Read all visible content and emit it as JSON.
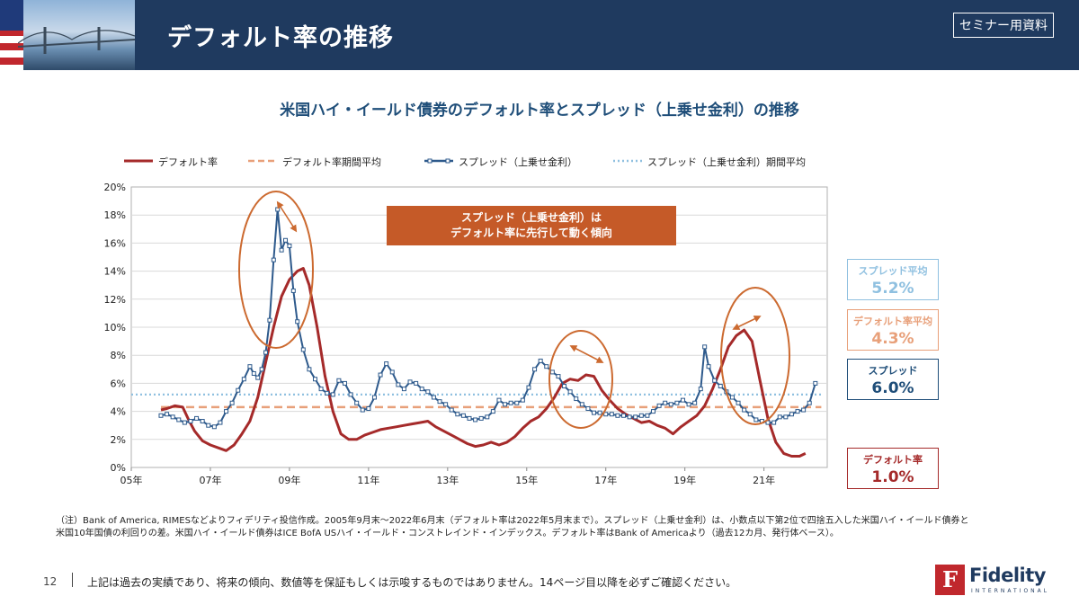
{
  "header": {
    "title": "デフォルト率の推移",
    "badge": "セミナー用資料"
  },
  "legend": {
    "default_rate": "デフォルト率",
    "default_avg": "デフォルト率期間平均",
    "spread": "スプレッド（上乗せ金利）",
    "spread_avg": "スプレッド（上乗せ金利）期間平均"
  },
  "callout": {
    "line1": "スプレッド（上乗せ金利）は",
    "line2": "デフォルト率に先行して動く傾向"
  },
  "kpis": {
    "spread_avg_label": "スプレッド平均",
    "spread_avg_value": "5.2%",
    "default_avg_label": "デフォルト率平均",
    "default_avg_value": "4.3%",
    "spread_label": "スプレッド",
    "spread_value": "6.0%",
    "default_label": "デフォルト率",
    "default_value": "1.0%"
  },
  "notes": {
    "line1": "（注）Bank of America, RIMESなどよりフィデリティ投信作成。2005年9月末～2022年6月末（デフォルト率は2022年5月末まで）。スプレッド（上乗せ金利）は、小数点以下第2位で四捨五入した米国ハイ・イールド債券と",
    "line2": "米国10年国債の利回りの差。米国ハイ・イールド債券はICE BofA USハイ・イールド・コンストレインド・インデックス。デフォルト率はBank of Americaより（過去12カ月、発行体ベース）。"
  },
  "footer": {
    "page": "12",
    "disclaimer": "上記は過去の実績であり、将来の傾向、数値等を保証もしくは示唆するものではありません。14ページ目以降を必ずご確認ください。",
    "logo_name": "Fidelity",
    "logo_sub": "INTERNATIONAL",
    "logo_mark": "F"
  },
  "colors": {
    "header_bg": "#1f3a5f",
    "default_rate": "#a52a2a",
    "default_avg": "#e8a07a",
    "spread": "#2e5a8c",
    "spread_avg": "#8fc0e0",
    "callout_bg": "#c55a28",
    "ellipse": "#cc6a30"
  },
  "chart_data": {
    "type": "line",
    "title": "米国ハイ・イールド債券のデフォルト率とスプレッド（上乗せ金利）の推移",
    "xlabel": "",
    "ylabel": "",
    "xlim": [
      2005.0,
      2022.6
    ],
    "ylim": [
      0,
      20
    ],
    "x_ticks": [
      {
        "x": 2005,
        "label": "05年"
      },
      {
        "x": 2007,
        "label": "07年"
      },
      {
        "x": 2009,
        "label": "09年"
      },
      {
        "x": 2011,
        "label": "11年"
      },
      {
        "x": 2013,
        "label": "13年"
      },
      {
        "x": 2015,
        "label": "15年"
      },
      {
        "x": 2017,
        "label": "17年"
      },
      {
        "x": 2019,
        "label": "19年"
      },
      {
        "x": 2021,
        "label": "21年"
      }
    ],
    "y_ticks": [
      "0%",
      "2%",
      "4%",
      "6%",
      "8%",
      "10%",
      "12%",
      "14%",
      "16%",
      "18%",
      "20%"
    ],
    "grid": true,
    "legend_position": "top",
    "series": [
      {
        "name": "デフォルト率",
        "style": "solid",
        "points": [
          [
            2005.75,
            4.1
          ],
          [
            2005.9,
            4.2
          ],
          [
            2006.1,
            4.4
          ],
          [
            2006.3,
            4.3
          ],
          [
            2006.45,
            3.4
          ],
          [
            2006.6,
            2.6
          ],
          [
            2006.8,
            1.9
          ],
          [
            2007.0,
            1.6
          ],
          [
            2007.2,
            1.4
          ],
          [
            2007.4,
            1.2
          ],
          [
            2007.6,
            1.6
          ],
          [
            2007.8,
            2.4
          ],
          [
            2008.0,
            3.3
          ],
          [
            2008.2,
            5.0
          ],
          [
            2008.4,
            7.5
          ],
          [
            2008.6,
            10.0
          ],
          [
            2008.8,
            12.2
          ],
          [
            2009.0,
            13.4
          ],
          [
            2009.2,
            14.0
          ],
          [
            2009.35,
            14.2
          ],
          [
            2009.5,
            13.0
          ],
          [
            2009.7,
            10.0
          ],
          [
            2009.9,
            6.5
          ],
          [
            2010.1,
            4.0
          ],
          [
            2010.3,
            2.4
          ],
          [
            2010.5,
            2.0
          ],
          [
            2010.7,
            2.0
          ],
          [
            2010.9,
            2.3
          ],
          [
            2011.1,
            2.5
          ],
          [
            2011.3,
            2.7
          ],
          [
            2011.5,
            2.8
          ],
          [
            2011.7,
            2.9
          ],
          [
            2011.9,
            3.0
          ],
          [
            2012.1,
            3.1
          ],
          [
            2012.3,
            3.2
          ],
          [
            2012.5,
            3.3
          ],
          [
            2012.7,
            2.9
          ],
          [
            2012.9,
            2.6
          ],
          [
            2013.1,
            2.3
          ],
          [
            2013.3,
            2.0
          ],
          [
            2013.5,
            1.7
          ],
          [
            2013.7,
            1.5
          ],
          [
            2013.9,
            1.6
          ],
          [
            2014.1,
            1.8
          ],
          [
            2014.3,
            1.6
          ],
          [
            2014.5,
            1.8
          ],
          [
            2014.7,
            2.2
          ],
          [
            2014.9,
            2.8
          ],
          [
            2015.1,
            3.3
          ],
          [
            2015.3,
            3.6
          ],
          [
            2015.5,
            4.2
          ],
          [
            2015.7,
            5.0
          ],
          [
            2015.9,
            6.0
          ],
          [
            2016.1,
            6.3
          ],
          [
            2016.3,
            6.2
          ],
          [
            2016.5,
            6.6
          ],
          [
            2016.7,
            6.5
          ],
          [
            2016.9,
            5.5
          ],
          [
            2017.1,
            4.8
          ],
          [
            2017.3,
            4.2
          ],
          [
            2017.5,
            3.8
          ],
          [
            2017.7,
            3.5
          ],
          [
            2017.9,
            3.2
          ],
          [
            2018.1,
            3.3
          ],
          [
            2018.3,
            3.0
          ],
          [
            2018.5,
            2.8
          ],
          [
            2018.7,
            2.4
          ],
          [
            2018.9,
            2.9
          ],
          [
            2019.1,
            3.3
          ],
          [
            2019.3,
            3.7
          ],
          [
            2019.5,
            4.4
          ],
          [
            2019.7,
            5.6
          ],
          [
            2019.9,
            7.0
          ],
          [
            2020.1,
            8.6
          ],
          [
            2020.3,
            9.4
          ],
          [
            2020.5,
            9.8
          ],
          [
            2020.7,
            9.0
          ],
          [
            2020.9,
            6.2
          ],
          [
            2021.1,
            3.5
          ],
          [
            2021.3,
            1.8
          ],
          [
            2021.5,
            1.0
          ],
          [
            2021.7,
            0.8
          ],
          [
            2021.9,
            0.8
          ],
          [
            2022.05,
            1.0
          ]
        ]
      },
      {
        "name": "デフォルト率期間平均",
        "style": "dashed",
        "points": [
          [
            2005.75,
            4.3
          ],
          [
            2022.45,
            4.3
          ]
        ]
      },
      {
        "name": "スプレッド（上乗せ金利）",
        "style": "markers",
        "points": [
          [
            2005.75,
            3.7
          ],
          [
            2005.9,
            3.8
          ],
          [
            2006.05,
            3.6
          ],
          [
            2006.2,
            3.4
          ],
          [
            2006.35,
            3.2
          ],
          [
            2006.5,
            3.3
          ],
          [
            2006.65,
            3.5
          ],
          [
            2006.8,
            3.3
          ],
          [
            2006.95,
            3.0
          ],
          [
            2007.1,
            2.9
          ],
          [
            2007.25,
            3.2
          ],
          [
            2007.4,
            4.0
          ],
          [
            2007.55,
            4.6
          ],
          [
            2007.7,
            5.5
          ],
          [
            2007.85,
            6.3
          ],
          [
            2008.0,
            7.2
          ],
          [
            2008.1,
            6.7
          ],
          [
            2008.2,
            6.4
          ],
          [
            2008.3,
            7.0
          ],
          [
            2008.4,
            8.2
          ],
          [
            2008.5,
            10.5
          ],
          [
            2008.6,
            14.8
          ],
          [
            2008.7,
            18.4
          ],
          [
            2008.8,
            15.5
          ],
          [
            2008.9,
            16.2
          ],
          [
            2009.0,
            15.8
          ],
          [
            2009.1,
            12.6
          ],
          [
            2009.2,
            10.4
          ],
          [
            2009.35,
            8.4
          ],
          [
            2009.5,
            7.0
          ],
          [
            2009.65,
            6.3
          ],
          [
            2009.8,
            5.6
          ],
          [
            2009.95,
            5.3
          ],
          [
            2010.1,
            5.2
          ],
          [
            2010.25,
            6.2
          ],
          [
            2010.4,
            6.0
          ],
          [
            2010.55,
            5.2
          ],
          [
            2010.7,
            4.6
          ],
          [
            2010.85,
            4.1
          ],
          [
            2011.0,
            4.2
          ],
          [
            2011.15,
            5.0
          ],
          [
            2011.3,
            6.6
          ],
          [
            2011.45,
            7.4
          ],
          [
            2011.6,
            6.8
          ],
          [
            2011.75,
            5.9
          ],
          [
            2011.9,
            5.6
          ],
          [
            2012.05,
            6.1
          ],
          [
            2012.2,
            6.0
          ],
          [
            2012.35,
            5.6
          ],
          [
            2012.5,
            5.4
          ],
          [
            2012.65,
            5.0
          ],
          [
            2012.8,
            4.7
          ],
          [
            2012.95,
            4.5
          ],
          [
            2013.1,
            4.1
          ],
          [
            2013.25,
            3.8
          ],
          [
            2013.4,
            3.7
          ],
          [
            2013.55,
            3.5
          ],
          [
            2013.7,
            3.4
          ],
          [
            2013.85,
            3.5
          ],
          [
            2014.0,
            3.6
          ],
          [
            2014.15,
            4.0
          ],
          [
            2014.3,
            4.8
          ],
          [
            2014.45,
            4.5
          ],
          [
            2014.6,
            4.6
          ],
          [
            2014.75,
            4.6
          ],
          [
            2014.9,
            4.8
          ],
          [
            2015.05,
            5.7
          ],
          [
            2015.2,
            7.0
          ],
          [
            2015.35,
            7.6
          ],
          [
            2015.5,
            7.2
          ],
          [
            2015.65,
            6.8
          ],
          [
            2015.8,
            6.5
          ],
          [
            2015.95,
            5.8
          ],
          [
            2016.1,
            5.4
          ],
          [
            2016.25,
            4.9
          ],
          [
            2016.4,
            4.5
          ],
          [
            2016.55,
            4.2
          ],
          [
            2016.7,
            3.9
          ],
          [
            2016.85,
            3.9
          ],
          [
            2017.0,
            3.8
          ],
          [
            2017.15,
            3.8
          ],
          [
            2017.3,
            3.7
          ],
          [
            2017.45,
            3.7
          ],
          [
            2017.6,
            3.6
          ],
          [
            2017.75,
            3.6
          ],
          [
            2017.9,
            3.7
          ],
          [
            2018.05,
            3.7
          ],
          [
            2018.2,
            4.0
          ],
          [
            2018.35,
            4.4
          ],
          [
            2018.5,
            4.6
          ],
          [
            2018.65,
            4.5
          ],
          [
            2018.8,
            4.6
          ],
          [
            2018.95,
            4.8
          ],
          [
            2019.1,
            4.5
          ],
          [
            2019.25,
            4.6
          ],
          [
            2019.4,
            5.6
          ],
          [
            2019.5,
            8.6
          ],
          [
            2019.6,
            7.2
          ],
          [
            2019.75,
            6.2
          ],
          [
            2019.9,
            5.8
          ],
          [
            2020.05,
            5.4
          ],
          [
            2020.2,
            5.0
          ],
          [
            2020.35,
            4.6
          ],
          [
            2020.5,
            4.1
          ],
          [
            2020.65,
            3.8
          ],
          [
            2020.8,
            3.4
          ],
          [
            2020.95,
            3.3
          ],
          [
            2021.1,
            3.2
          ],
          [
            2021.25,
            3.2
          ],
          [
            2021.4,
            3.6
          ],
          [
            2021.55,
            3.6
          ],
          [
            2021.7,
            3.8
          ],
          [
            2021.85,
            4.0
          ],
          [
            2022.0,
            4.1
          ],
          [
            2022.15,
            4.6
          ],
          [
            2022.3,
            6.0
          ]
        ]
      },
      {
        "name": "スプレッド（上乗せ金利）期間平均",
        "style": "dotted",
        "points": [
          [
            2005.0,
            5.2
          ],
          [
            2022.45,
            5.2
          ]
        ]
      }
    ]
  }
}
